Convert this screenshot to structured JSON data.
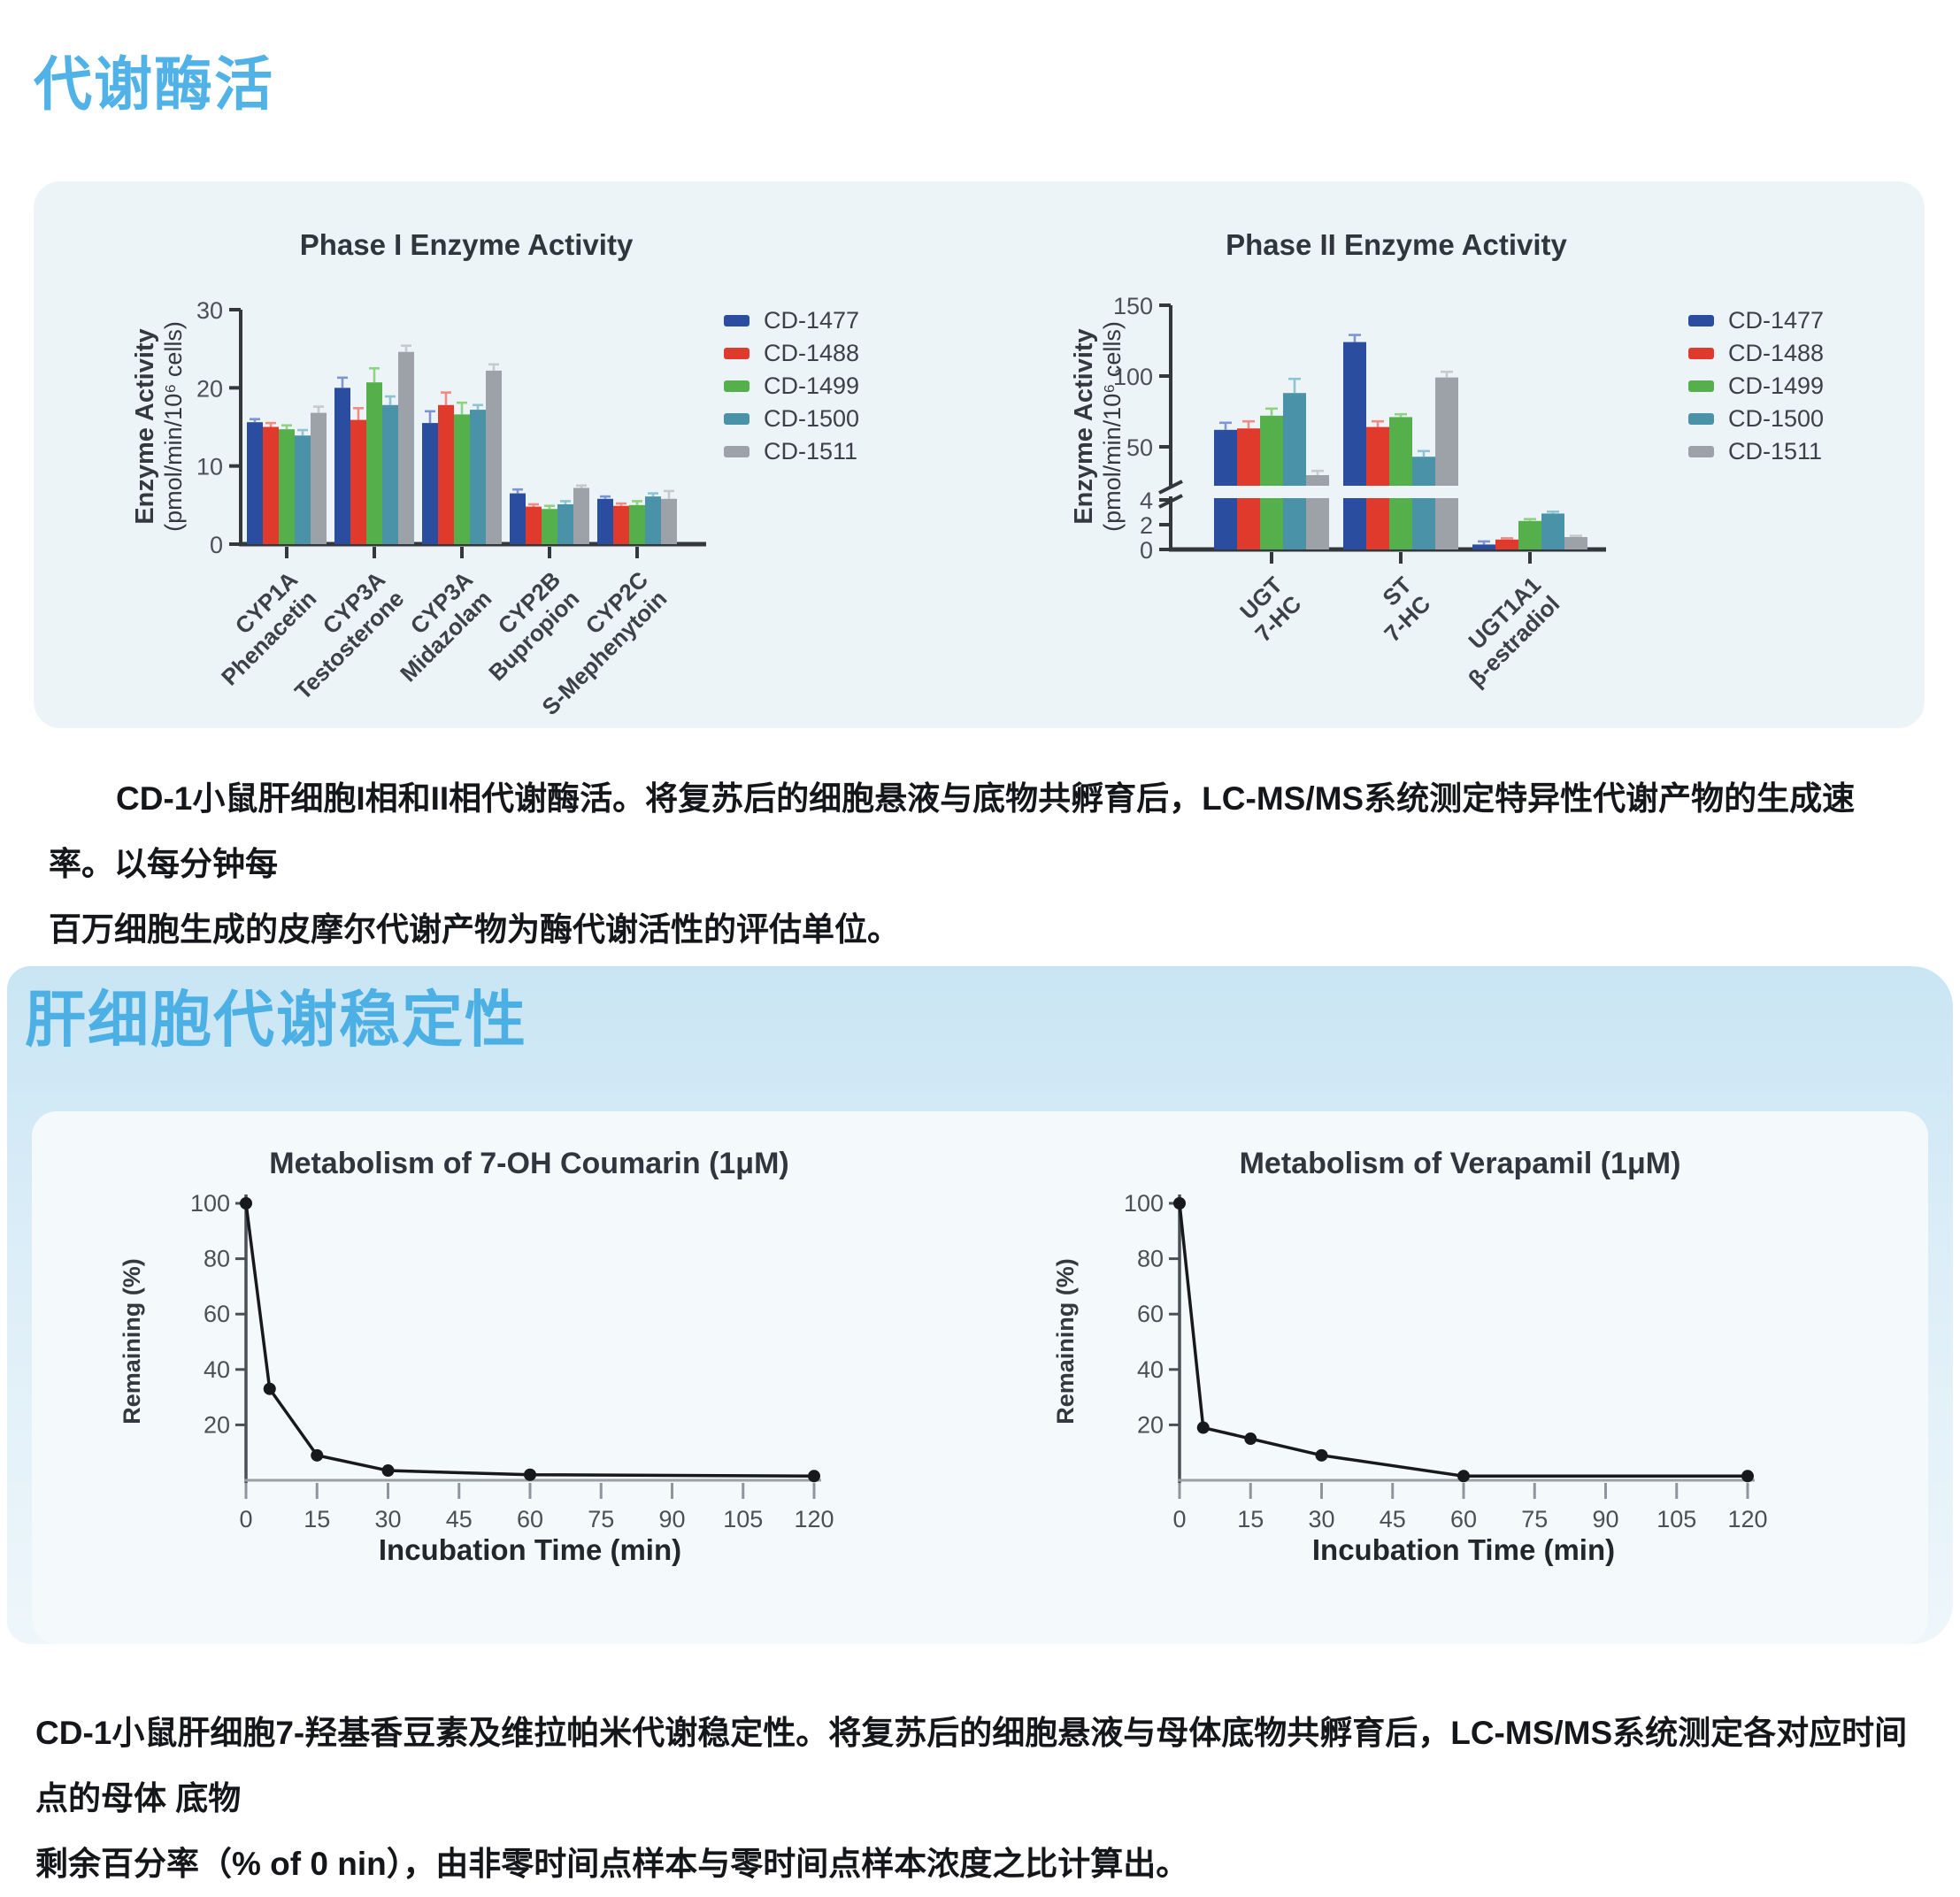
{
  "page": {
    "background": "#ffffff",
    "accent_blue": "#50b2e6",
    "section1": {
      "title": "代谢酶活",
      "panel_bg": "#edf4f8",
      "caption_line1": "CD-1小鼠肝细胞I相和II相代谢酶活。将复苏后的细胞悬液与底物共孵育后，LC-MS/MS系统测定特异性代谢产物的生成速率。以每分钟每",
      "caption_line2": "百万细胞生成的皮摩尔代谢产物为酶代谢活性的评估单位。"
    },
    "section2": {
      "title": "肝细胞代谢稳定性",
      "band_bg": "#c9e5f4",
      "panel_bg": "#f4f9fc",
      "caption_line1": "CD-1小鼠肝细胞7-羟基香豆素及维拉帕米代谢稳定性。将复苏后的细胞悬液与母体底物共孵育后，LC-MS/MS系统测定各对应时间点的母体 底物",
      "caption_line2": "剩余百分率（% of 0  nin），由非零时间点样本与零时间点样本浓度之比计算出。"
    }
  },
  "chart_data": [
    {
      "id": "phase1",
      "type": "bar",
      "title": "Phase I Enzyme Activity",
      "ylabel_bold": "Enzyme Activity",
      "ylabel_sub": "(pmol/min/10⁶ cells)",
      "ylim": [
        0,
        30
      ],
      "yticks": [
        0,
        10,
        20,
        30
      ],
      "grid": false,
      "legend_position": "right",
      "categories": [
        [
          "CYP1A",
          "Phenacetin"
        ],
        [
          "CYP3A",
          "Testosterone"
        ],
        [
          "CYP3A",
          "Midazolam"
        ],
        [
          "CYP2B",
          "Bupropion"
        ],
        [
          "CYP2C",
          "S-Mephenytoin"
        ]
      ],
      "series": [
        {
          "name": "CD-1477",
          "color": "#2b4da0",
          "err_color": "#7d96d2",
          "values": [
            15.6,
            20.0,
            15.5,
            6.5,
            5.8
          ],
          "errors": [
            0.4,
            1.3,
            1.5,
            0.5,
            0.3
          ]
        },
        {
          "name": "CD-1488",
          "color": "#e03a2d",
          "err_color": "#f08c83",
          "values": [
            15.0,
            15.9,
            17.8,
            4.8,
            4.9
          ],
          "errors": [
            0.5,
            1.5,
            1.6,
            0.3,
            0.3
          ]
        },
        {
          "name": "CD-1499",
          "color": "#55b04b",
          "err_color": "#8ed382",
          "values": [
            14.7,
            20.7,
            16.6,
            4.5,
            5.0
          ],
          "errors": [
            0.5,
            1.8,
            1.5,
            0.4,
            0.5
          ]
        },
        {
          "name": "CD-1500",
          "color": "#4a92a8",
          "err_color": "#8ec4d2",
          "values": [
            13.9,
            17.8,
            17.2,
            5.1,
            6.1
          ],
          "errors": [
            0.7,
            1.1,
            0.6,
            0.4,
            0.4
          ]
        },
        {
          "name": "CD-1511",
          "color": "#9ca2a8",
          "err_color": "#c5cacd",
          "values": [
            16.8,
            24.6,
            22.2,
            7.2,
            5.8
          ],
          "errors": [
            0.8,
            0.8,
            0.8,
            0.3,
            1.0
          ]
        }
      ]
    },
    {
      "id": "phase2",
      "type": "bar",
      "title": "Phase II Enzyme Activity",
      "ylabel_bold": "Enzyme Activity",
      "ylabel_sub": "(pmol/min/10⁶ cells)",
      "axis_break": true,
      "upper_ylim": [
        23,
        150
      ],
      "upper_yticks": [
        50,
        100,
        150
      ],
      "lower_ylim": [
        0,
        4
      ],
      "lower_yticks": [
        0,
        2,
        4
      ],
      "grid": false,
      "legend_position": "right",
      "categories": [
        [
          "UGT",
          "7-HC"
        ],
        [
          "ST",
          "7-HC"
        ],
        [
          "UGT1A1",
          "β-estradiol"
        ]
      ],
      "series": [
        {
          "name": "CD-1477",
          "color": "#2b4da0",
          "err_color": "#7d96d2",
          "values": [
            62,
            124,
            0.4
          ],
          "errors": [
            5,
            5,
            0.25
          ]
        },
        {
          "name": "CD-1488",
          "color": "#e03a2d",
          "err_color": "#f08c83",
          "values": [
            63,
            64,
            0.8
          ],
          "errors": [
            5,
            4,
            0.1
          ]
        },
        {
          "name": "CD-1499",
          "color": "#55b04b",
          "err_color": "#8ed382",
          "values": [
            72,
            71,
            2.3
          ],
          "errors": [
            5,
            2,
            0.15
          ]
        },
        {
          "name": "CD-1500",
          "color": "#4a92a8",
          "err_color": "#8ec4d2",
          "values": [
            88,
            43,
            2.9
          ],
          "errors": [
            10,
            4,
            0.15
          ]
        },
        {
          "name": "CD-1511",
          "color": "#9ca2a8",
          "err_color": "#c5cacd",
          "values": [
            30,
            99,
            1.0
          ],
          "errors": [
            3,
            4,
            0.1
          ]
        }
      ]
    },
    {
      "id": "coumarin",
      "type": "line",
      "title": "Metabolism of 7-OH Coumarin (1μM)",
      "xlabel": "Incubation Time (min)",
      "ylabel": "Remaining (%)",
      "xlim": [
        0,
        120
      ],
      "ylim": [
        0,
        100
      ],
      "xticks": [
        0,
        15,
        30,
        45,
        60,
        75,
        90,
        105,
        120
      ],
      "yticks": [
        20,
        40,
        60,
        80,
        100
      ],
      "x": [
        0,
        5,
        15,
        30,
        60,
        120
      ],
      "y": [
        100,
        33,
        9,
        3.5,
        2,
        1.5
      ],
      "line_color": "#17191c"
    },
    {
      "id": "verapamil",
      "type": "line",
      "title": "Metabolism of Verapamil (1μM)",
      "xlabel": "Incubation Time (min)",
      "ylabel": "Remaining (%)",
      "xlim": [
        0,
        120
      ],
      "ylim": [
        0,
        100
      ],
      "xticks": [
        0,
        15,
        30,
        45,
        60,
        75,
        90,
        105,
        120
      ],
      "yticks": [
        20,
        40,
        60,
        80,
        100
      ],
      "x": [
        0,
        5,
        15,
        30,
        60,
        120
      ],
      "y": [
        100,
        19,
        15,
        9,
        1.5,
        1.5
      ],
      "line_color": "#17191c"
    }
  ]
}
